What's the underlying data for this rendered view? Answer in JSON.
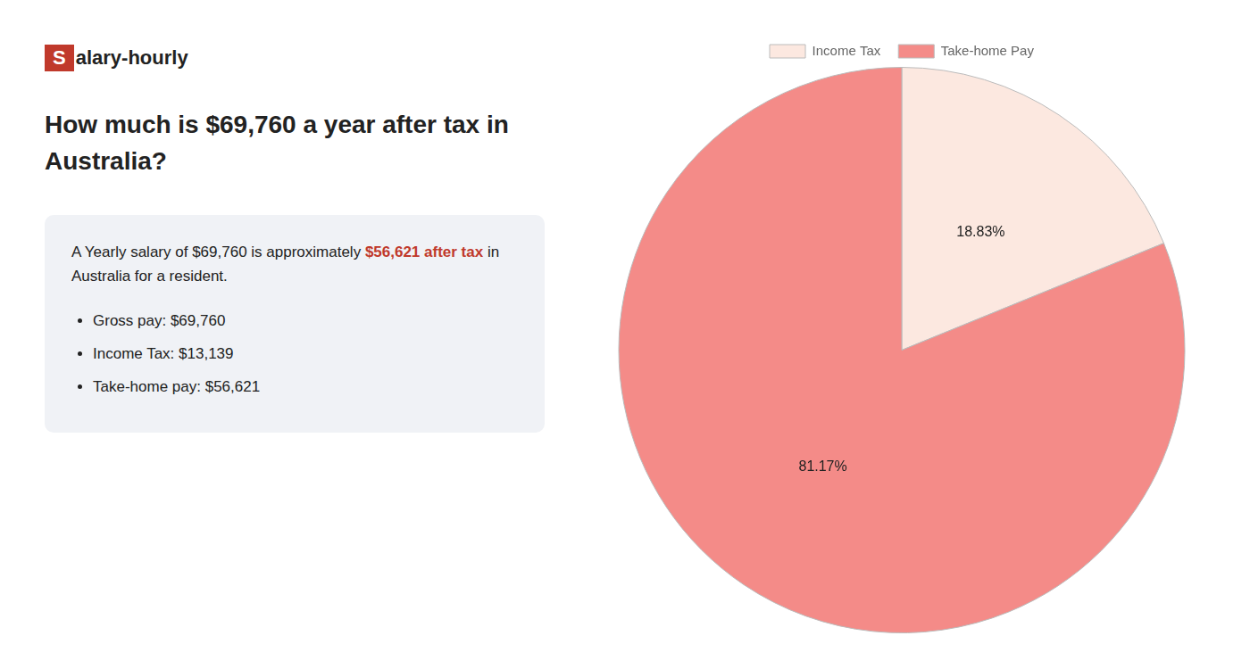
{
  "chart_data": {
    "type": "pie",
    "title": "How much is $69,760 a year after tax in\nAustralia?",
    "annotations": [
      [
        {
          "text": "S",
          "color": "#c0392b"
        },
        {
          "text": "alary-hourly"
        }
      ],
      [
        {
          "text": "A Yearly salary of $69,760 is approximately "
        },
        {
          "text": "$56,621 after tax",
          "color": "#c0392b"
        },
        {
          "text": " in"
        }
      ],
      [
        {
          "text": "Australia for a resident."
        }
      ]
    ],
    "bullets": [
      "Gross pay: $69,760",
      "Income Tax: $13,139",
      "Take-home pay: $56,621"
    ],
    "categories": [
      "Income Tax",
      "Take-home Pay"
    ],
    "values": [
      18.83,
      81.17
    ],
    "value_labels": [
      "18.83%",
      "81.17%"
    ],
    "colors": [
      "#fce8e0",
      "#f48b88"
    ],
    "data_labels": true,
    "legend": "top"
  }
}
